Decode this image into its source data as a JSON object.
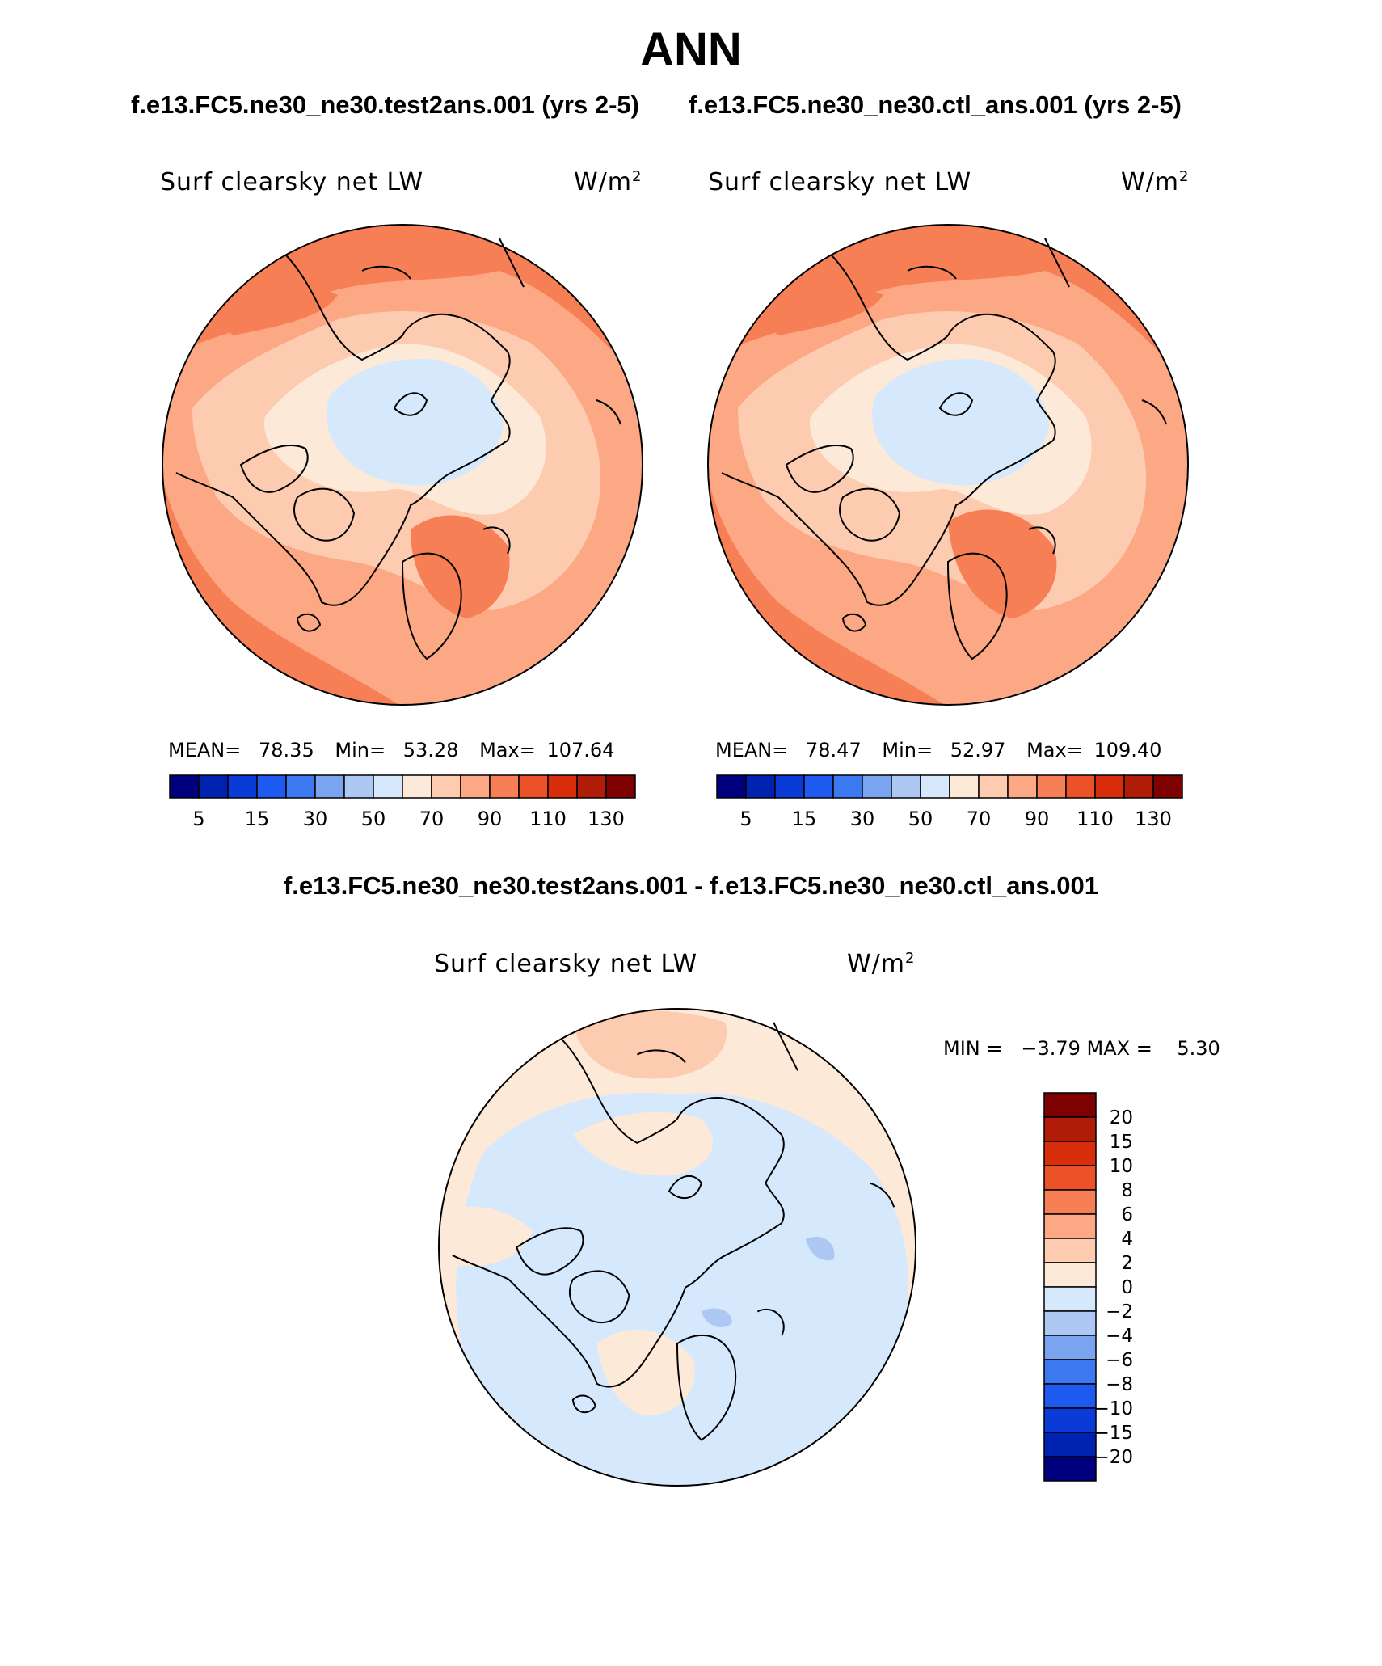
{
  "title": "ANN",
  "case_left": "f.e13.FC5.ne30_ne30.test2ans.001 (yrs 2-5)",
  "case_right": "f.e13.FC5.ne30_ne30.ctl_ans.001 (yrs 2-5)",
  "diff_title": "f.e13.FC5.ne30_ne30.test2ans.001 - f.e13.FC5.ne30_ne30.ctl_ans.001",
  "panels": {
    "left": {
      "variable": "Surf clearsky net LW",
      "units_base": "W/m",
      "units_exp": "2",
      "mean_label": "MEAN=",
      "mean": "78.35",
      "min_label": "Min=",
      "min": "53.28",
      "max_label": "Max=",
      "max": "107.64"
    },
    "right": {
      "variable": "Surf clearsky net LW",
      "units_base": "W/m",
      "units_exp": "2",
      "mean_label": "MEAN=",
      "mean": "78.47",
      "min_label": "Min=",
      "min": "52.97",
      "max_label": "Max=",
      "max": "109.40"
    },
    "diff": {
      "variable": "Surf clearsky net LW",
      "units_base": "W/m",
      "units_exp": "2",
      "minmax_text": "MIN =   −3.79 MAX =    5.30"
    }
  },
  "colorbar_main": {
    "colors": [
      "#00007f",
      "#0022b0",
      "#0a3ad8",
      "#1e5af0",
      "#3c78f0",
      "#7aa4f0",
      "#aec8f4",
      "#d6e8fb",
      "#fde9d8",
      "#fdcbb0",
      "#fca884",
      "#f77f55",
      "#ec5228",
      "#d92e0c",
      "#b01c08",
      "#7f0000"
    ],
    "ticks": [
      "5",
      "15",
      "30",
      "50",
      "70",
      "90",
      "110",
      "130"
    ]
  },
  "colorbar_diff": {
    "colors": [
      "#7f0000",
      "#b01c08",
      "#d92e0c",
      "#ec5228",
      "#f77f55",
      "#fca884",
      "#fdcbb0",
      "#fde9d8",
      "#d6e8fb",
      "#aec8f4",
      "#7aa4f0",
      "#3c78f0",
      "#1e5af0",
      "#0a3ad8",
      "#0022b0",
      "#00007f"
    ],
    "ticks": [
      "20",
      "15",
      "10",
      "8",
      "6",
      "4",
      "2",
      "0",
      "−2",
      "−4",
      "−6",
      "−8",
      "−10",
      "−15",
      "−20"
    ]
  },
  "map_colors": {
    "c50": "#d6e8fb",
    "c70": "#fde9d8",
    "c90": "#fdcbb0",
    "c110": "#fca884",
    "c130": "#f77f55",
    "d0": "#fde9d8",
    "d2": "#fdcbb0",
    "dn2": "#d6e8fb",
    "dn4": "#aec8f4"
  }
}
